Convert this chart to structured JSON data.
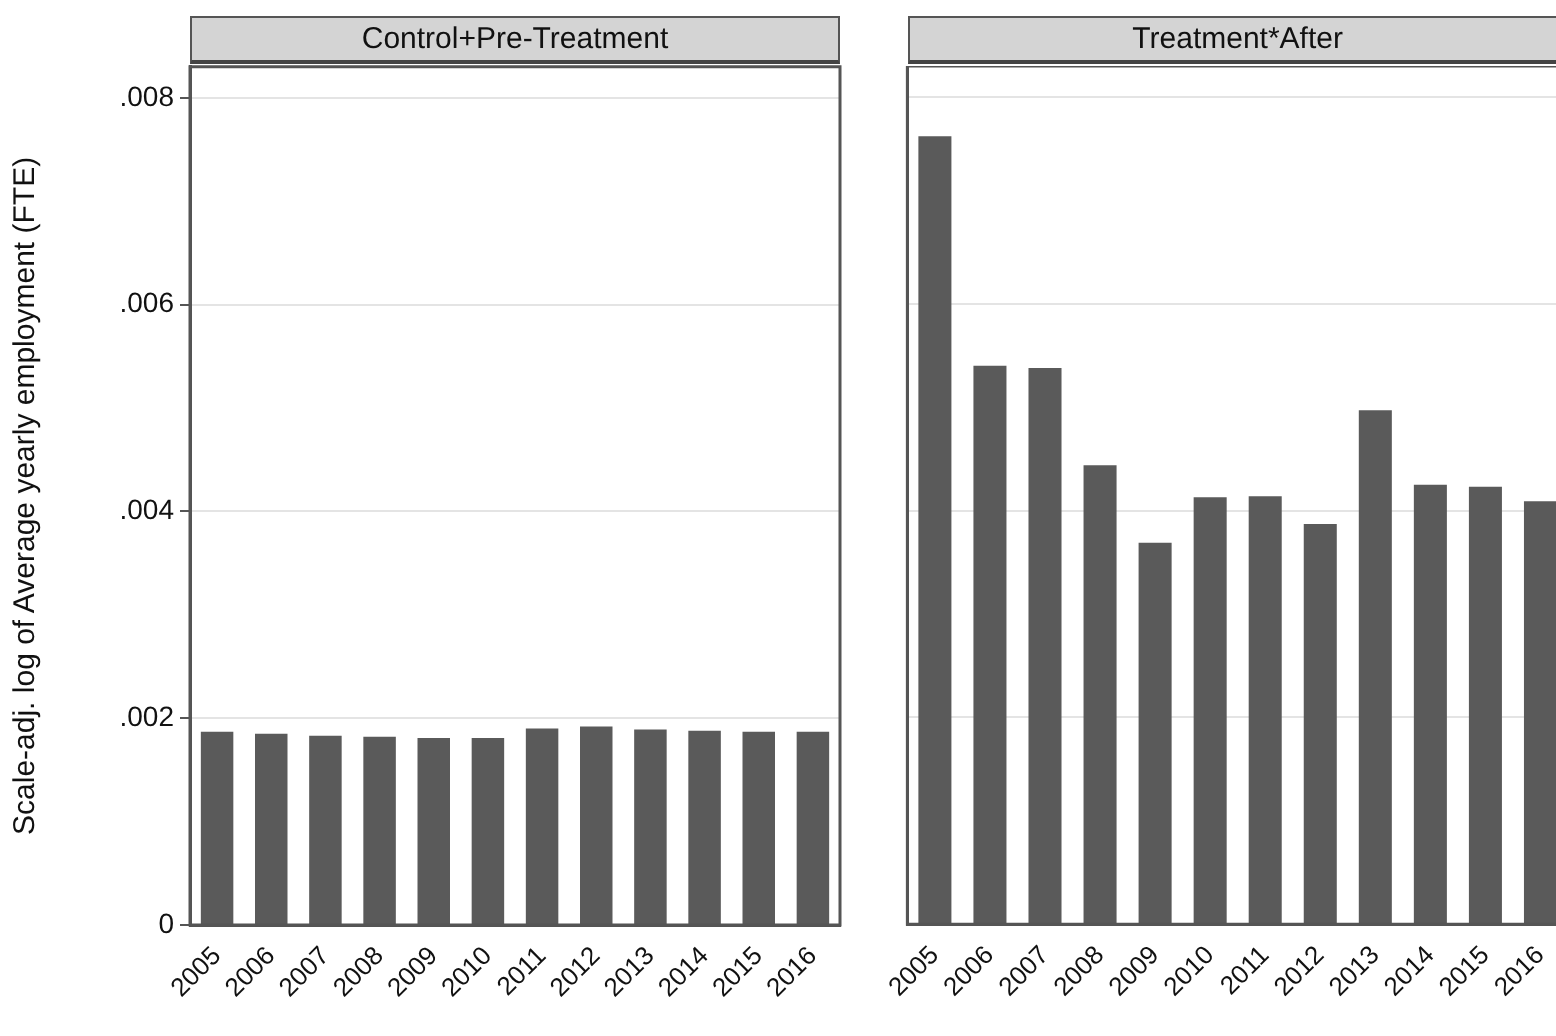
{
  "chart_data": [
    {
      "type": "bar",
      "title": "Control+Pre-Treatment",
      "ylabel": "Scale-adj. log of Average yearly employment (FTE)",
      "categories": [
        "2005",
        "2006",
        "2007",
        "2008",
        "2009",
        "2010",
        "2011",
        "2012",
        "2013",
        "2014",
        "2015",
        "2016"
      ],
      "values": [
        0.00187,
        0.00185,
        0.00183,
        0.00182,
        0.00181,
        0.00181,
        0.0019,
        0.00192,
        0.00189,
        0.00188,
        0.00187,
        0.00187
      ],
      "color": "#5a5a5a",
      "ylim": [
        0,
        0.0083
      ],
      "yticks": [
        0,
        {
          "value": 0.002,
          "label": ".002"
        },
        {
          "value": 0.004,
          "label": ".004"
        },
        {
          "value": 0.006,
          "label": ".006"
        },
        {
          "value": 0.008,
          "label": ".008"
        }
      ],
      "grid": "y",
      "legend": false
    },
    {
      "type": "bar",
      "title": "Treatment*After",
      "categories": [
        "2005",
        "2006",
        "2007",
        "2008",
        "2009",
        "2010",
        "2011",
        "2012",
        "2013",
        "2014",
        "2015",
        "2016"
      ],
      "values": [
        0.00762,
        0.0054,
        0.00538,
        0.00444,
        0.00369,
        0.00413,
        0.00414,
        0.00387,
        0.00497,
        0.00425,
        0.00423,
        0.00409
      ],
      "color": "#5a5a5a",
      "ylim": [
        0,
        0.0083
      ],
      "yticks": [
        {
          "value": 0,
          "label": null
        },
        {
          "value": 0.002,
          "label": null
        },
        {
          "value": 0.004,
          "label": null
        },
        {
          "value": 0.006,
          "label": null
        },
        {
          "value": 0.008,
          "label": null
        }
      ],
      "grid": "y",
      "legend": false,
      "tick_labels": "x"
    }
  ]
}
